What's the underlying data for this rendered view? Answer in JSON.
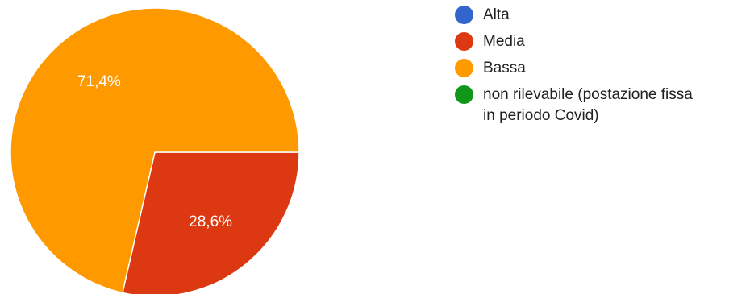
{
  "chart_data": {
    "type": "pie",
    "categories": [
      "Alta",
      "Media",
      "Bassa",
      "non rilevabile (postazione fissa\nin periodo Covid)"
    ],
    "values": [
      0,
      28.6,
      71.4,
      0
    ],
    "value_labels": [
      "",
      "",
      "71,4%",
      ""
    ],
    "slice_labels": {
      "Media": "28,6%",
      "Bassa": "71,4%"
    },
    "colors": [
      "#3366cc",
      "#dc3912",
      "#ff9900",
      "#109618"
    ],
    "legend_position": "right",
    "start_angle": "3 o'clock, clockwise"
  }
}
